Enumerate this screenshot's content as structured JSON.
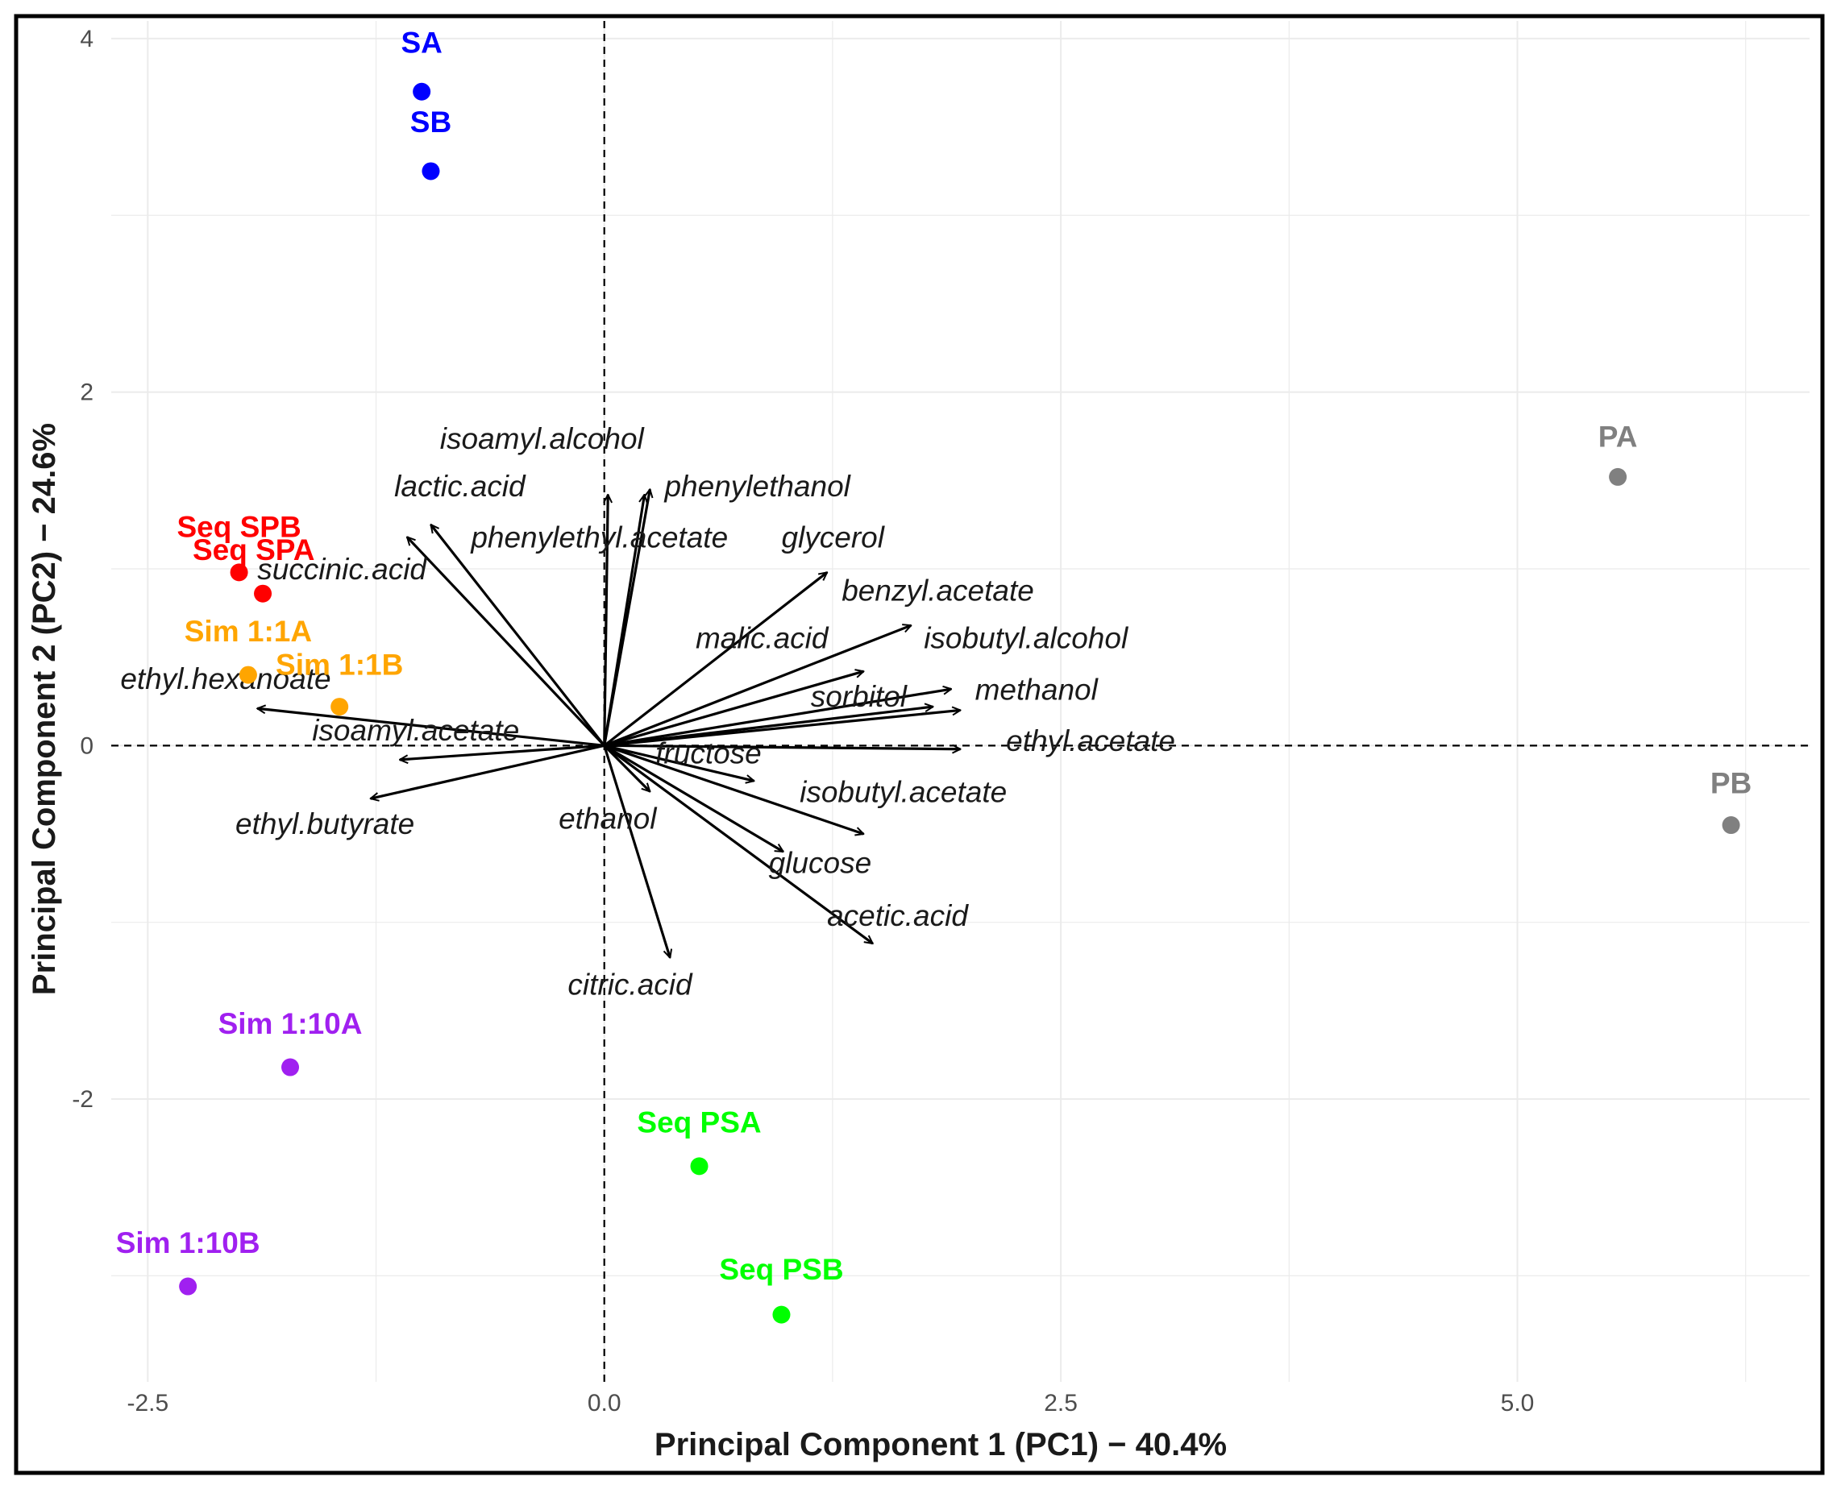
{
  "chart_data": {
    "type": "scatter",
    "subtype": "pca-biplot",
    "xlabel": "Principal Component 1 (PC1) − 40.4%",
    "ylabel": "Principal Component 2 (PC2) − 24.6%",
    "xlim": [
      -2.7,
      6.6
    ],
    "ylim": [
      -3.6,
      4.1
    ],
    "x_ticks": [
      {
        "value": -2.5,
        "label": "-2.5"
      },
      {
        "value": 0,
        "label": "0.0"
      },
      {
        "value": 2.5,
        "label": "2.5"
      },
      {
        "value": 5,
        "label": "5.0"
      }
    ],
    "y_ticks": [
      {
        "value": -2,
        "label": "-2"
      },
      {
        "value": 0,
        "label": "0"
      },
      {
        "value": 2,
        "label": "2"
      },
      {
        "value": 4,
        "label": "4"
      }
    ],
    "grid": true,
    "reference_lines": "dashed lines at x = 0 and y = 0",
    "colors": {
      "blue": "#0000ff",
      "red": "#ff0000",
      "orange": "#ffa500",
      "purple": "#a020f0",
      "green": "#00ff00",
      "grey": "#808080",
      "arrow": "#000000"
    },
    "samples": [
      {
        "label": "SA",
        "x": -1.0,
        "y": 3.7,
        "color": "#0000ff",
        "label_dx": 0,
        "label_dy": 0.22,
        "anchor": "middle"
      },
      {
        "label": "SB",
        "x": -0.95,
        "y": 3.25,
        "color": "#0000ff",
        "label_dx": 0,
        "label_dy": 0.22,
        "anchor": "middle"
      },
      {
        "label": "Seq SPB",
        "x": -2.0,
        "y": 0.98,
        "color": "#ff0000",
        "label_dx": 0,
        "label_dy": 0.2,
        "anchor": "middle"
      },
      {
        "label": "Seq SPA",
        "x": -1.87,
        "y": 0.86,
        "color": "#ff0000",
        "label_dx": -0.05,
        "label_dy": 0.19,
        "anchor": "middle"
      },
      {
        "label": "Sim 1:1A",
        "x": -1.95,
        "y": 0.4,
        "color": "#ffa500",
        "label_dx": 0,
        "label_dy": 0.19,
        "anchor": "middle"
      },
      {
        "label": "Sim 1:1B",
        "x": -1.45,
        "y": 0.22,
        "color": "#ffa500",
        "label_dx": 0,
        "label_dy": 0.18,
        "anchor": "middle"
      },
      {
        "label": "PA",
        "x": 5.55,
        "y": 1.52,
        "color": "#808080",
        "label_dx": 0,
        "label_dy": 0.17,
        "anchor": "middle"
      },
      {
        "label": "PB",
        "x": 6.17,
        "y": -0.45,
        "color": "#808080",
        "label_dx": 0,
        "label_dy": 0.18,
        "anchor": "middle"
      },
      {
        "label": "Sim 1:10A",
        "x": -1.72,
        "y": -1.82,
        "color": "#a020f0",
        "label_dx": 0,
        "label_dy": 0.19,
        "anchor": "middle"
      },
      {
        "label": "Sim 1:10B",
        "x": -2.28,
        "y": -3.06,
        "color": "#a020f0",
        "label_dx": 0,
        "label_dy": 0.19,
        "anchor": "middle"
      },
      {
        "label": "Seq PSA",
        "x": 0.52,
        "y": -2.38,
        "color": "#00ff00",
        "label_dx": 0,
        "label_dy": 0.19,
        "anchor": "middle"
      },
      {
        "label": "Seq PSB",
        "x": 0.97,
        "y": -3.22,
        "color": "#00ff00",
        "label_dx": 0,
        "label_dy": 0.2,
        "anchor": "middle"
      }
    ],
    "loadings": [
      {
        "name": "isoamyl.alcohol",
        "x": 0.02,
        "y": 1.42,
        "label_x": -0.9,
        "label_y": 1.68,
        "anchor": "start"
      },
      {
        "name": "phenylethanol",
        "x": 0.25,
        "y": 1.45,
        "label_x": 0.33,
        "label_y": 1.41,
        "anchor": "start"
      },
      {
        "name": "lactic.acid",
        "x": -0.95,
        "y": 1.25,
        "label_x": -1.15,
        "label_y": 1.41,
        "anchor": "start"
      },
      {
        "name": "succinic.acid",
        "x": -1.08,
        "y": 1.18,
        "label_x": -1.9,
        "label_y": 0.94,
        "anchor": "start"
      },
      {
        "name": "phenylethyl.acetate",
        "x": 0.22,
        "y": 1.42,
        "label_x": -0.73,
        "label_y": 1.12,
        "anchor": "start"
      },
      {
        "name": "glycerol",
        "x": 1.22,
        "y": 0.98,
        "label_x": 0.97,
        "label_y": 1.12,
        "anchor": "start"
      },
      {
        "name": "benzyl.acetate",
        "x": 1.68,
        "y": 0.68,
        "label_x": 1.3,
        "label_y": 0.82,
        "anchor": "start"
      },
      {
        "name": "malic.acid",
        "x": 1.42,
        "y": 0.42,
        "label_x": 0.5,
        "label_y": 0.55,
        "anchor": "start"
      },
      {
        "name": "isobutyl.alcohol",
        "x": 1.9,
        "y": 0.32,
        "label_x": 1.75,
        "label_y": 0.55,
        "anchor": "start"
      },
      {
        "name": "methanol",
        "x": 1.95,
        "y": 0.2,
        "label_x": 2.03,
        "label_y": 0.26,
        "anchor": "start"
      },
      {
        "name": "sorbitol",
        "x": 1.8,
        "y": 0.22,
        "label_x": 1.13,
        "label_y": 0.22,
        "anchor": "start"
      },
      {
        "name": "ethyl.hexanoate",
        "x": -1.9,
        "y": 0.21,
        "label_x": -2.65,
        "label_y": 0.32,
        "anchor": "start"
      },
      {
        "name": "isoamyl.acetate",
        "x": -1.12,
        "y": -0.08,
        "label_x": -1.6,
        "label_y": 0.03,
        "anchor": "start"
      },
      {
        "name": "ethyl.acetate",
        "x": 1.95,
        "y": -0.02,
        "label_x": 2.2,
        "label_y": -0.03,
        "anchor": "start"
      },
      {
        "name": "fructose",
        "x": 0.82,
        "y": -0.2,
        "label_x": 0.28,
        "label_y": -0.1,
        "anchor": "start"
      },
      {
        "name": "isobutyl.acetate",
        "x": 1.42,
        "y": -0.5,
        "label_x": 1.07,
        "label_y": -0.32,
        "anchor": "start"
      },
      {
        "name": "ethyl.butyrate",
        "x": -1.28,
        "y": -0.3,
        "label_x": -2.02,
        "label_y": -0.5,
        "anchor": "start"
      },
      {
        "name": "ethanol",
        "x": 0.25,
        "y": -0.26,
        "label_x": -0.25,
        "label_y": -0.47,
        "anchor": "start"
      },
      {
        "name": "glucose",
        "x": 0.98,
        "y": -0.6,
        "label_x": 0.9,
        "label_y": -0.72,
        "anchor": "start"
      },
      {
        "name": "acetic.acid",
        "x": 1.47,
        "y": -1.12,
        "label_x": 1.22,
        "label_y": -1.02,
        "anchor": "start"
      },
      {
        "name": "citric.acid",
        "x": 0.36,
        "y": -1.2,
        "label_x": -0.2,
        "label_y": -1.41,
        "anchor": "start"
      }
    ]
  }
}
